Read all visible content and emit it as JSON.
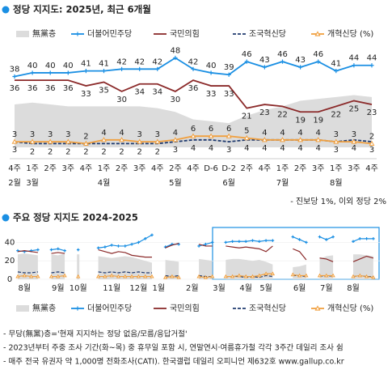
{
  "chart_data": [
    {
      "type": "line",
      "title": "정당 지지도: 2025년, 최근 6개월",
      "categories": [
        "4주",
        "1주",
        "2주",
        "3주",
        "4주",
        "1주",
        "2주",
        "3주",
        "4주",
        "2주",
        "4주",
        "D-6",
        "D-2",
        "2주",
        "4주",
        "1주",
        "2주",
        "3주",
        "1주",
        "3주",
        "4주"
      ],
      "months": [
        "2월",
        "3월",
        null,
        null,
        null,
        "4월",
        null,
        null,
        null,
        "5월",
        null,
        null,
        "6월",
        null,
        null,
        "7월",
        null,
        null,
        "8월",
        null,
        null
      ],
      "ylim": [
        0,
        53
      ],
      "data_labels": true,
      "note": "- 진보당 1%, 이외 정당 2%",
      "series": [
        {
          "name": "無黨층",
          "type": "area",
          "color": "#dcdcdc",
          "values": [
            23,
            24,
            23,
            22,
            22,
            22,
            22,
            22,
            21,
            19,
            15,
            14,
            13,
            17,
            20,
            22,
            25,
            26,
            27,
            28,
            27
          ]
        },
        {
          "name": "더불어민주당",
          "type": "line",
          "color": "#1a8fe3",
          "marker": "plus",
          "label": "above",
          "values": [
            38,
            40,
            40,
            40,
            41,
            41,
            42,
            42,
            42,
            48,
            42,
            40,
            39,
            46,
            43,
            46,
            43,
            46,
            41,
            44,
            44
          ]
        },
        {
          "name": "국민의힘",
          "type": "line",
          "color": "#8b2a2a",
          "label": "below",
          "values": [
            36,
            36,
            36,
            36,
            33,
            35,
            30,
            34,
            34,
            30,
            36,
            33,
            33,
            21,
            23,
            22,
            19,
            19,
            22,
            25,
            23
          ]
        },
        {
          "name": "조국혁신당",
          "type": "line",
          "color": "#1f3a6e",
          "dash": true,
          "label": "below",
          "values": [
            3,
            2,
            2,
            2,
            2,
            2,
            2,
            2,
            2,
            3,
            4,
            4,
            3,
            4,
            4,
            4,
            4,
            4,
            3,
            4,
            3
          ]
        },
        {
          "name": "개혁신당 (%)",
          "type": "line",
          "color": "#f0a040",
          "marker": "triangle",
          "label": "above",
          "values": [
            3,
            3,
            3,
            3,
            2,
            4,
            4,
            3,
            3,
            4,
            6,
            6,
            6,
            5,
            4,
            4,
            4,
            4,
            3,
            3,
            2
          ]
        }
      ]
    },
    {
      "type": "line",
      "title": "주요 정당 지지도 2024-2025",
      "categories": [
        null,
        "8월",
        null,
        null,
        null,
        null,
        "9월",
        null,
        null,
        "10월",
        null,
        null,
        null,
        null,
        "11월",
        null,
        null,
        null,
        "12월",
        null,
        null,
        "1월",
        null,
        null,
        null,
        null,
        "2월",
        null,
        null,
        null,
        "3월",
        null,
        null,
        null,
        "4월",
        null,
        null,
        "5월",
        null,
        null,
        null,
        null,
        "6월",
        null,
        null,
        null,
        "7월",
        null,
        null,
        null,
        "8월",
        null,
        null,
        null
      ],
      "ylim": [
        0,
        50
      ],
      "yticks": [
        0,
        20,
        40
      ],
      "series": [
        {
          "name": "無黨층",
          "type": "area",
          "color": "#dcdcdc",
          "values": [
            27,
            28,
            27,
            26,
            null,
            27,
            26,
            28,
            null,
            27,
            null,
            null,
            25,
            24,
            23,
            24,
            25,
            24,
            22,
            20,
            18,
            null,
            21,
            20,
            19,
            null,
            null,
            22,
            21,
            20,
            null,
            21,
            22,
            22,
            21,
            20,
            21,
            19,
            16,
            null,
            null,
            13,
            14,
            16,
            null,
            22,
            25,
            26,
            null,
            null,
            27,
            27,
            26,
            25
          ]
        },
        {
          "name": "더불어민주당",
          "type": "line",
          "color": "#1a8fe3",
          "marker": "plus",
          "values": [
            31,
            30,
            31,
            32,
            null,
            32,
            33,
            31,
            null,
            32,
            null,
            null,
            34,
            35,
            37,
            36,
            36,
            38,
            40,
            44,
            48,
            null,
            35,
            38,
            38,
            null,
            null,
            36,
            38,
            40,
            null,
            40,
            41,
            41,
            41,
            42,
            41,
            42,
            42,
            null,
            null,
            46,
            43,
            40,
            null,
            46,
            43,
            46,
            null,
            null,
            41,
            44,
            44,
            44
          ]
        },
        {
          "name": "국민의힘",
          "type": "line",
          "color": "#8b2a2a",
          "values": [
            30,
            31,
            30,
            29,
            null,
            28,
            29,
            28,
            null,
            27,
            null,
            null,
            32,
            30,
            28,
            30,
            29,
            26,
            25,
            24,
            24,
            null,
            34,
            37,
            39,
            null,
            null,
            38,
            36,
            36,
            null,
            36,
            35,
            34,
            35,
            34,
            33,
            30,
            36,
            null,
            null,
            33,
            30,
            21,
            null,
            23,
            22,
            19,
            null,
            null,
            19,
            22,
            25,
            23
          ]
        },
        {
          "name": "조국혁신당",
          "type": "line",
          "color": "#1f3a6e",
          "dash": true,
          "values": [
            8,
            7,
            7,
            8,
            null,
            7,
            8,
            7,
            null,
            8,
            null,
            null,
            8,
            7,
            8,
            7,
            8,
            7,
            8,
            7,
            7,
            null,
            4,
            3,
            4,
            null,
            null,
            4,
            3,
            3,
            null,
            3,
            3,
            3,
            2,
            3,
            2,
            4,
            3,
            null,
            null,
            4,
            4,
            3,
            null,
            4,
            3,
            4,
            null,
            null,
            3,
            4,
            3,
            3
          ]
        },
        {
          "name": "개혁신당 (%)",
          "type": "line",
          "color": "#f0a040",
          "marker": "triangle",
          "values": [
            3,
            4,
            3,
            3,
            null,
            3,
            3,
            4,
            null,
            3,
            null,
            null,
            3,
            3,
            4,
            3,
            3,
            3,
            3,
            3,
            3,
            null,
            2,
            3,
            2,
            null,
            null,
            3,
            2,
            3,
            null,
            3,
            3,
            4,
            3,
            3,
            4,
            6,
            6,
            null,
            null,
            5,
            4,
            4,
            null,
            4,
            4,
            4,
            null,
            null,
            3,
            4,
            3,
            2
          ]
        }
      ]
    }
  ],
  "notes": [
    "- 무당(無黨)층='현재 지지하는 정당 없음/모름/응답거절'",
    "- 2023년부터 주중 조사 기간(화~목) 중 휴무일 포함 시, 연말연시·여름휴가철 각각 3주간 데일리 조사 쉼",
    "- 매주 전국 유권자 약 1,000명 전화조사(CATI). 한국갤럽 데일리 오피니언 제632호 www.gallup.co.kr"
  ]
}
